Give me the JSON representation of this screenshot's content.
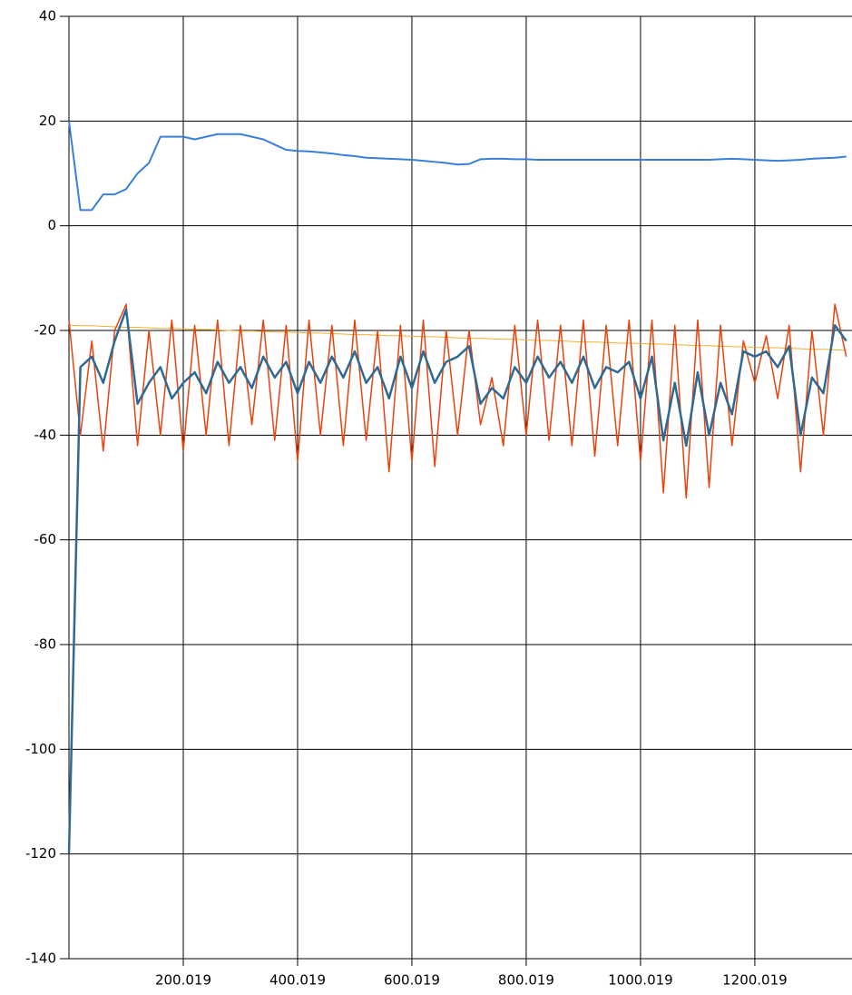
{
  "chart_data": {
    "type": "line",
    "x": [
      0.019,
      20.019,
      40.019,
      60.019,
      80.019,
      100.019,
      120.019,
      140.019,
      160.019,
      180.019,
      200.019,
      220.019,
      240.019,
      260.019,
      280.019,
      300.019,
      320.019,
      340.019,
      360.019,
      380.019,
      400.019,
      420.019,
      440.019,
      460.019,
      480.019,
      500.019,
      520.019,
      540.019,
      560.019,
      580.019,
      600.019,
      620.019,
      640.019,
      660.019,
      680.019,
      700.019,
      720.019,
      740.019,
      760.019,
      780.019,
      800.019,
      820.019,
      840.019,
      860.019,
      880.019,
      900.019,
      920.019,
      940.019,
      960.019,
      980.019,
      1000.019,
      1020.019,
      1040.019,
      1060.019,
      1080.019,
      1100.019,
      1120.019,
      1140.019,
      1160.019,
      1180.019,
      1200.019,
      1220.019,
      1240.019,
      1260.019,
      1280.019,
      1300.019,
      1320.019,
      1340.019,
      1360.019
    ],
    "series": [
      {
        "color": "#f0b030",
        "width": 1,
        "values": [
          -19.0,
          -19.1,
          -19.1,
          -19.2,
          -19.3,
          -19.4,
          -19.4,
          -19.5,
          -19.6,
          -19.6,
          -19.7,
          -19.8,
          -19.8,
          -19.9,
          -20.0,
          -20.1,
          -20.1,
          -20.2,
          -20.3,
          -20.3,
          -20.4,
          -20.5,
          -20.5,
          -20.6,
          -20.7,
          -20.8,
          -20.8,
          -20.9,
          -21.0,
          -21.0,
          -21.1,
          -21.2,
          -21.2,
          -21.3,
          -21.4,
          -21.5,
          -21.5,
          -21.6,
          -21.7,
          -21.7,
          -21.8,
          -21.9,
          -21.9,
          -22.0,
          -22.1,
          -22.2,
          -22.2,
          -22.3,
          -22.4,
          -22.4,
          -22.5,
          -22.6,
          -22.6,
          -22.7,
          -22.8,
          -22.9,
          -22.9,
          -23.0,
          -23.1,
          -23.1,
          -23.2,
          -23.3,
          -23.3,
          -23.4,
          -23.5,
          -23.6,
          -23.6,
          -23.7,
          -23.8
        ]
      },
      {
        "color": "#e8430c",
        "width": 1.5,
        "values": [
          -18,
          -40,
          -22,
          -43,
          -20,
          -15,
          -42,
          -20,
          -40,
          -18,
          -43,
          -19,
          -40,
          -18,
          -42,
          -19,
          -38,
          -18,
          -41,
          -19,
          -45,
          -18,
          -40,
          -19,
          -42,
          -18,
          -41,
          -20,
          -47,
          -19,
          -45,
          -18,
          -46,
          -20,
          -40,
          -20,
          -38,
          -29,
          -42,
          -19,
          -40,
          -18,
          -41,
          -19,
          -42,
          -18,
          -44,
          -19,
          -42,
          -18,
          -45,
          -18,
          -51,
          -19,
          -52,
          -18,
          -50,
          -19,
          -42,
          -22,
          -30,
          -21,
          -33,
          -19,
          -47,
          -20,
          -40,
          -15,
          -25
        ]
      },
      {
        "color": "#2e6a94",
        "width": 2.5,
        "values": [
          -120,
          -27,
          -25,
          -30,
          -22,
          -16,
          -34,
          -30,
          -27,
          -33,
          -30,
          -28,
          -32,
          -26,
          -30,
          -27,
          -31,
          -25,
          -29,
          -26,
          -32,
          -26,
          -30,
          -25,
          -29,
          -24,
          -30,
          -27,
          -33,
          -25,
          -31,
          -24,
          -30,
          -26,
          -25,
          -23,
          -34,
          -31,
          -33,
          -27,
          -30,
          -25,
          -29,
          -26,
          -30,
          -25,
          -31,
          -27,
          -28,
          -26,
          -33,
          -25,
          -41,
          -30,
          -42,
          -28,
          -40,
          -30,
          -36,
          -24,
          -25,
          -24,
          -27,
          -23,
          -40,
          -29,
          -32,
          -19,
          -22
        ]
      },
      {
        "color": "#3a80d8",
        "width": 2,
        "values": [
          20,
          3,
          3,
          6,
          6,
          7,
          10,
          12,
          17,
          17,
          17,
          16.5,
          17,
          17.5,
          17.5,
          17.5,
          17,
          16.5,
          15.5,
          14.5,
          14.3,
          14.2,
          14,
          13.8,
          13.5,
          13.3,
          13,
          12.9,
          12.8,
          12.7,
          12.6,
          12.4,
          12.2,
          12,
          11.7,
          11.8,
          12.7,
          12.8,
          12.8,
          12.7,
          12.7,
          12.6,
          12.6,
          12.6,
          12.6,
          12.6,
          12.6,
          12.6,
          12.6,
          12.6,
          12.6,
          12.6,
          12.6,
          12.6,
          12.6,
          12.6,
          12.6,
          12.7,
          12.8,
          12.7,
          12.6,
          12.5,
          12.4,
          12.5,
          12.6,
          12.8,
          12.9,
          13.0,
          13.2
        ]
      }
    ],
    "xlim": [
      0.019,
      1370.019
    ],
    "ylim": [
      -140,
      40
    ],
    "xticks": [
      200.019,
      400.019,
      600.019,
      800.019,
      1000.019,
      1200.019
    ],
    "yticks": [
      -140,
      -120,
      -100,
      -80,
      -60,
      -40,
      -20,
      0,
      20,
      40
    ],
    "grid": true
  }
}
